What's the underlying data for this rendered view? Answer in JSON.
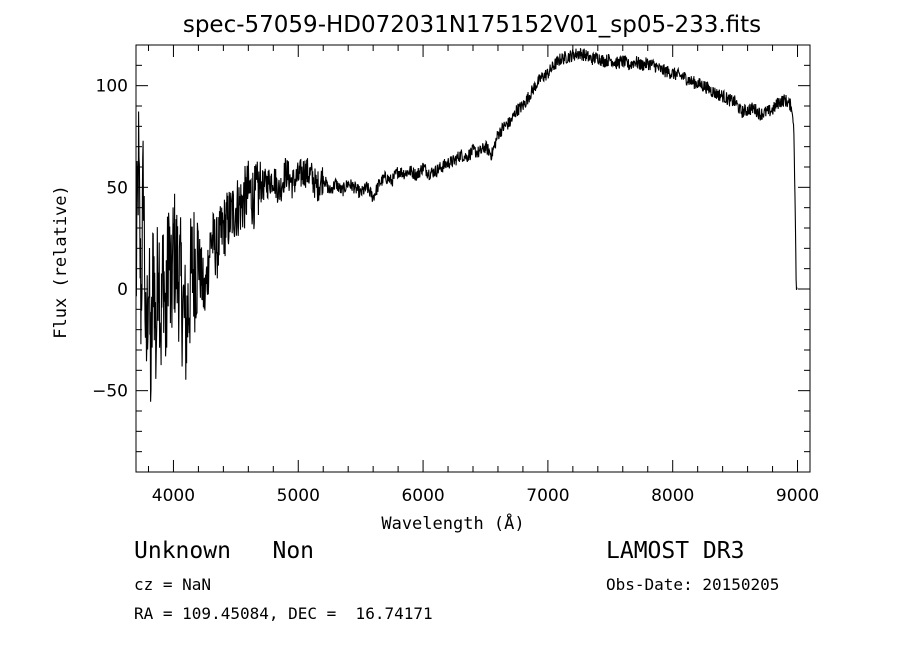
{
  "chart_data": {
    "type": "line",
    "title": "spec-57059-HD072031N175152V01_sp05-233.fits",
    "xlabel": "Wavelength (Å)",
    "ylabel": "Flux (relative)",
    "xlim": [
      3700,
      9100
    ],
    "ylim": [
      -90,
      120
    ],
    "xticks": [
      4000,
      5000,
      6000,
      7000,
      8000,
      9000
    ],
    "yticks": [
      -50,
      0,
      50,
      100
    ],
    "grid": false,
    "series": [
      {
        "x": [
          3700,
          3720,
          3740,
          3760,
          3780,
          3800,
          3820,
          3840,
          3860,
          3880,
          3900,
          3920,
          3940,
          3960,
          3980,
          4000,
          4050,
          4100,
          4150,
          4200,
          4250,
          4300,
          4350,
          4400,
          4450,
          4500,
          4550,
          4600,
          4650,
          4700,
          4750,
          4800,
          4850,
          4900,
          4950,
          5000,
          5050,
          5100,
          5150,
          5200,
          5250,
          5300,
          5350,
          5400,
          5450,
          5500,
          5550,
          5600,
          5650,
          5700,
          5750,
          5800,
          5850,
          5900,
          5950,
          6000,
          6050,
          6100,
          6150,
          6200,
          6250,
          6300,
          6350,
          6400,
          6450,
          6500,
          6550,
          6600,
          6650,
          6700,
          6750,
          6800,
          6850,
          6900,
          6950,
          7000,
          7050,
          7100,
          7150,
          7200,
          7250,
          7300,
          7350,
          7400,
          7450,
          7500,
          7550,
          7600,
          7650,
          7700,
          7750,
          7800,
          7850,
          7900,
          7950,
          8000,
          8050,
          8100,
          8150,
          8200,
          8250,
          8300,
          8350,
          8400,
          8450,
          8500,
          8550,
          8600,
          8650,
          8700,
          8750,
          8800,
          8850,
          8900,
          8950,
          8970,
          8980,
          8990,
          9000
        ],
        "y": [
          0,
          65,
          -10,
          60,
          -40,
          10,
          -45,
          20,
          -30,
          25,
          -20,
          15,
          -25,
          30,
          -10,
          20,
          5,
          -20,
          10,
          15,
          -5,
          25,
          20,
          30,
          35,
          40,
          42,
          48,
          45,
          50,
          52,
          55,
          48,
          58,
          52,
          55,
          58,
          56,
          50,
          55,
          48,
          52,
          48,
          52,
          50,
          47,
          50,
          45,
          52,
          55,
          53,
          58,
          57,
          58,
          56,
          60,
          57,
          58,
          60,
          62,
          63,
          66,
          65,
          68,
          67,
          70,
          66,
          76,
          80,
          82,
          88,
          90,
          95,
          100,
          104,
          106,
          110,
          113,
          114,
          115,
          116,
          115,
          113,
          114,
          112,
          113,
          111,
          112,
          110,
          112,
          110,
          111,
          110,
          108,
          107,
          106,
          105,
          104,
          102,
          101,
          100,
          98,
          96,
          95,
          93,
          92,
          87,
          88,
          89,
          86,
          87,
          88,
          92,
          93,
          90,
          80,
          45,
          0,
          0
        ]
      }
    ]
  },
  "annotations": {
    "object": "Unknown   Non",
    "survey": "LAMOST DR3",
    "cz": "cz = NaN",
    "obsdate": "Obs-Date: 20150205",
    "radec": "RA = 109.45084, DEC =  16.74171"
  }
}
